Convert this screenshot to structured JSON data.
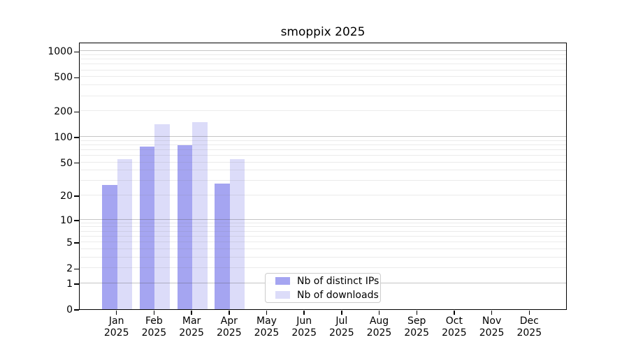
{
  "figure": {
    "title": "smoppix 2025"
  },
  "axes": {
    "x_months": [
      "Jan",
      "Feb",
      "Mar",
      "Apr",
      "May",
      "Jun",
      "Jul",
      "Aug",
      "Sep",
      "Oct",
      "Nov",
      "Dec"
    ],
    "x_year": "2025",
    "y_tick_labels": [
      "0",
      "1",
      "2",
      "5",
      "10",
      "20",
      "50",
      "100",
      "200",
      "500",
      "1000"
    ]
  },
  "chart_data": {
    "type": "bar",
    "title": "smoppix 2025",
    "categories": [
      "Jan 2025",
      "Feb 2025",
      "Mar 2025",
      "Apr 2025",
      "May 2025",
      "Jun 2025",
      "Jul 2025",
      "Aug 2025",
      "Sep 2025",
      "Oct 2025",
      "Nov 2025",
      "Dec 2025"
    ],
    "series": [
      {
        "key": "distinct-ips",
        "name": "Nb of distinct IPs",
        "color": "#a5a5f1",
        "values": [
          27,
          77,
          80,
          28,
          0,
          0,
          0,
          0,
          0,
          0,
          0,
          0
        ]
      },
      {
        "key": "downloads",
        "name": "Nb of downloads",
        "color": "#dcdcf9",
        "values": [
          55,
          140,
          150,
          55,
          0,
          0,
          0,
          0,
          0,
          0,
          0,
          0
        ]
      }
    ],
    "xlabel": "",
    "ylabel": "",
    "yscale": "log1p",
    "y_ticks": [
      0,
      1,
      2,
      5,
      10,
      20,
      50,
      100,
      200,
      500,
      1000
    ],
    "ylim": [
      0,
      1260
    ],
    "grid": "horizontal (major lines at 1,10,100,1000; faint minor lines at 2-9 per decade), drawn over bars",
    "legend_position": "lower center, inside plot"
  }
}
